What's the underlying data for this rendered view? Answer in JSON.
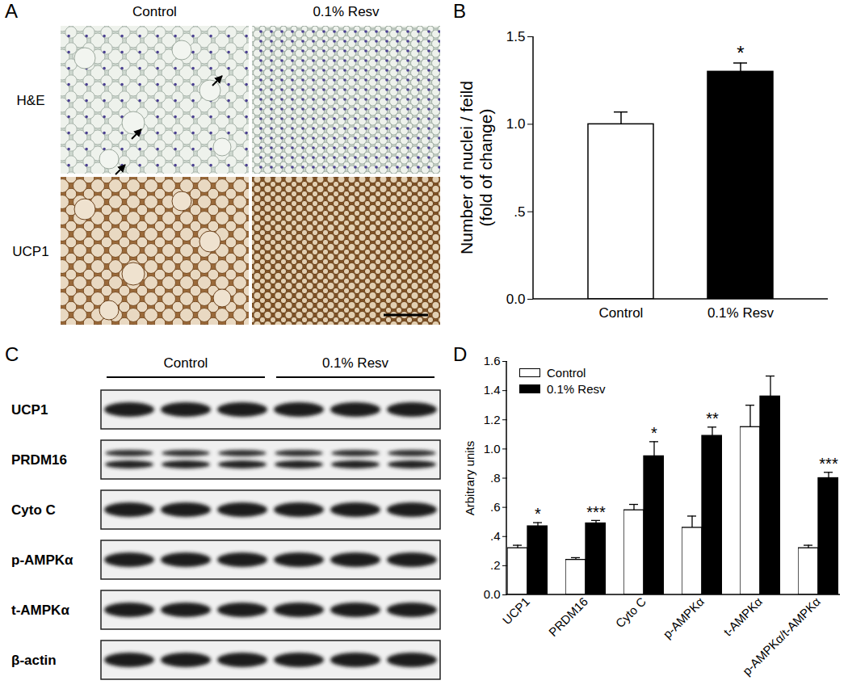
{
  "figure": {
    "histology": {
      "panel_label": "A",
      "columns": [
        "Control",
        "0.1% Resv"
      ],
      "rows": [
        "H&E",
        "UCP1"
      ]
    },
    "western_blot": {
      "panel_label": "C",
      "groups": [
        "Control",
        "0.1% Resv"
      ],
      "rows": [
        "UCP1",
        "PRDM16",
        "Cyto C",
        "p-AMPKα",
        "t-AMPKα",
        "β-actin"
      ]
    }
  },
  "chart_data": [
    {
      "panel_label": "B",
      "type": "bar",
      "categories": [
        "Control",
        "0.1% Resv"
      ],
      "values": [
        1.0,
        1.3
      ],
      "errors": [
        0.07,
        0.05
      ],
      "colors": [
        "#ffffff",
        "#000000"
      ],
      "annotations": [
        null,
        "*"
      ],
      "y_label": [
        "Number of nuclei / feild",
        "(fold of change)"
      ],
      "ylim": [
        0,
        1.5
      ],
      "yticks": [
        {
          "value": 0,
          "label": "0.0"
        },
        {
          "value": 0.5,
          "label": ".5"
        },
        {
          "value": 1,
          "label": "1.0"
        },
        {
          "value": 1.5,
          "label": "1.5"
        }
      ],
      "grid": false
    },
    {
      "panel_label": "D",
      "type": "bar",
      "categories": [
        "UCP1",
        "PRDM16",
        "Cyto C",
        "p-AMPKα",
        "t-AMPKα",
        "p-AMPKα/t-AMPKα"
      ],
      "series": [
        {
          "name": "Control",
          "color": "#ffffff",
          "values": [
            0.32,
            0.24,
            0.58,
            0.46,
            1.15,
            0.32
          ],
          "errors": [
            0.02,
            0.015,
            0.04,
            0.08,
            0.15,
            0.02
          ]
        },
        {
          "name": "0.1% Resv",
          "color": "#000000",
          "values": [
            0.47,
            0.49,
            0.95,
            1.09,
            1.36,
            0.8
          ],
          "errors": [
            0.025,
            0.02,
            0.1,
            0.06,
            0.14,
            0.04
          ],
          "annotations": [
            "*",
            "***",
            "*",
            "**",
            null,
            "***"
          ]
        }
      ],
      "y_label": "Arbitrary units",
      "ylim": [
        0,
        1.6
      ],
      "yticks": [
        {
          "value": 0,
          "label": "0.0"
        },
        {
          "value": 0.2,
          "label": ".2"
        },
        {
          "value": 0.4,
          "label": ".4"
        },
        {
          "value": 0.6,
          "label": ".6"
        },
        {
          "value": 0.8,
          "label": ".8"
        },
        {
          "value": 1,
          "label": "1.0"
        },
        {
          "value": 1.2,
          "label": "1.2"
        },
        {
          "value": 1.4,
          "label": "1.4"
        },
        {
          "value": 1.6,
          "label": "1.6"
        }
      ],
      "legend": "top-left",
      "grid": false
    }
  ]
}
